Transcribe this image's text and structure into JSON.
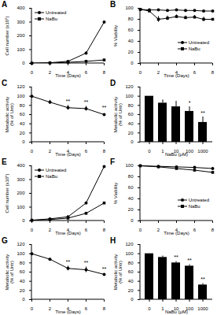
{
  "chart_data": [
    {
      "title": "A",
      "type": "line",
      "x": [
        0,
        2,
        4,
        6,
        8
      ],
      "xlim": [
        0,
        8
      ],
      "xticks": [
        0,
        2,
        4,
        6,
        8
      ],
      "ylim": [
        0,
        400
      ],
      "yticks": [
        0,
        100,
        200,
        300,
        400
      ],
      "x_label": "Time (Days)",
      "y_label": "Cell number (x10⁵)",
      "legend": "top-left",
      "series": [
        {
          "name": "Untreated",
          "color": "#000000",
          "marker": "circle",
          "values": [
            1,
            5,
            15,
            75,
            300
          ],
          "errors": [
            0,
            1,
            2,
            8,
            30
          ]
        },
        {
          "name": "NaBu",
          "color": "#000000",
          "marker": "square",
          "values": [
            1,
            3,
            8,
            15,
            25
          ],
          "errors": [
            0,
            1,
            1,
            2,
            4
          ]
        }
      ]
    },
    {
      "title": "B",
      "type": "line",
      "x": [
        0,
        1,
        2,
        3,
        4,
        5,
        6,
        7,
        8
      ],
      "xlim": [
        0,
        8
      ],
      "xticks": [
        0,
        2,
        4,
        6,
        8
      ],
      "ylim": [
        0,
        100
      ],
      "yticks": [
        0,
        20,
        40,
        60,
        80,
        100
      ],
      "x_label": "Time (Days)",
      "y_label": "% Viability",
      "legend": "bottom-right",
      "series": [
        {
          "name": "Untreated",
          "color": "#000000",
          "marker": "circle",
          "values": [
            98,
            97,
            97,
            96,
            97,
            96,
            96,
            95,
            95
          ],
          "errors": [
            1,
            1,
            1,
            1,
            1,
            1,
            1,
            1,
            1
          ]
        },
        {
          "name": "NaBu",
          "color": "#000000",
          "marker": "square",
          "values": [
            98,
            95,
            80,
            82,
            85,
            83,
            84,
            80,
            80
          ],
          "errors": [
            1,
            2,
            5,
            4,
            3,
            3,
            3,
            4,
            4
          ]
        }
      ]
    },
    {
      "title": "C",
      "type": "line",
      "x": [
        0,
        2,
        4,
        6,
        8
      ],
      "xlim": [
        0,
        8
      ],
      "xticks": [
        0,
        2,
        4,
        6,
        8
      ],
      "ylim": [
        0,
        120
      ],
      "yticks": [
        0,
        20,
        40,
        60,
        80,
        100,
        120
      ],
      "x_label": "Time (Days)",
      "y_label": "Metabolic activity (% of Untr)",
      "color": "#000000",
      "marker": "circle",
      "values": [
        100,
        87,
        75,
        73,
        60
      ],
      "errors": [
        0,
        4,
        5,
        5,
        6
      ],
      "annotations": [
        {
          "x": 4,
          "text": "**"
        },
        {
          "x": 6,
          "text": "**"
        },
        {
          "x": 8,
          "text": "**"
        }
      ]
    },
    {
      "title": "D",
      "type": "bar",
      "categories": [
        "0",
        "1",
        "10",
        "100",
        "1000"
      ],
      "ylim": [
        0,
        120
      ],
      "yticks": [
        0,
        20,
        40,
        60,
        80,
        100,
        120
      ],
      "x_label": "NaBu (μM)",
      "y_label": "Metabolic activity (% of Untr)",
      "color": "#000000",
      "values": [
        100,
        85,
        77,
        67,
        43
      ],
      "errors": [
        0,
        7,
        12,
        10,
        12
      ],
      "annotations": [
        {
          "x": "100",
          "text": "*"
        },
        {
          "x": "1000",
          "text": "**"
        }
      ]
    },
    {
      "title": "E",
      "type": "line",
      "x": [
        0,
        2,
        4,
        6,
        8
      ],
      "xlim": [
        0,
        8
      ],
      "xticks": [
        0,
        2,
        4,
        6,
        8
      ],
      "ylim": [
        0,
        400
      ],
      "yticks": [
        0,
        100,
        200,
        300,
        400
      ],
      "x_label": "Time (Days)",
      "y_label": "Cell number (x10⁵)",
      "legend": "top-left",
      "series": [
        {
          "name": "Untreated",
          "color": "#000000",
          "marker": "circle",
          "values": [
            5,
            15,
            30,
            130,
            395
          ],
          "errors": [
            1,
            2,
            3,
            5,
            6
          ]
        },
        {
          "name": "NaBu",
          "color": "#000000",
          "marker": "square",
          "values": [
            5,
            10,
            20,
            55,
            130
          ],
          "errors": [
            1,
            1,
            2,
            4,
            5
          ]
        }
      ]
    },
    {
      "title": "F",
      "type": "line",
      "x": [
        0,
        2,
        4,
        6,
        8
      ],
      "xlim": [
        0,
        8
      ],
      "xticks": [
        0,
        2,
        4,
        6,
        8
      ],
      "ylim": [
        0,
        100
      ],
      "yticks": [
        0,
        20,
        40,
        60,
        80,
        100
      ],
      "x_label": "Time (Days)",
      "y_label": "% Viability",
      "legend": "bottom-right",
      "series": [
        {
          "name": "Untreated",
          "color": "#000000",
          "marker": "circle",
          "values": [
            100,
            99,
            98,
            97,
            95
          ],
          "errors": [
            0,
            1,
            1,
            1,
            1
          ]
        },
        {
          "name": "NaBu",
          "color": "#000000",
          "marker": "square",
          "values": [
            100,
            98,
            95,
            92,
            88
          ],
          "errors": [
            0,
            1,
            1,
            1,
            1
          ]
        }
      ]
    },
    {
      "title": "G",
      "type": "line",
      "x": [
        0,
        2,
        4,
        6,
        8
      ],
      "xlim": [
        0,
        8
      ],
      "xticks": [
        0,
        2,
        4,
        6,
        8
      ],
      "ylim": [
        0,
        120
      ],
      "yticks": [
        0,
        20,
        40,
        60,
        80,
        100,
        120
      ],
      "x_label": "Time (Days)",
      "y_label": "Metabolic activity (% of Untr)",
      "color": "#000000",
      "marker": "circle",
      "values": [
        100,
        88,
        68,
        65,
        55
      ],
      "errors": [
        0,
        2,
        5,
        6,
        3
      ],
      "annotations": [
        {
          "x": 4,
          "text": "**"
        },
        {
          "x": 6,
          "text": "**"
        },
        {
          "x": 8,
          "text": "**"
        }
      ]
    },
    {
      "title": "H",
      "type": "bar",
      "categories": [
        "0",
        "1",
        "10",
        "100",
        "1000"
      ],
      "ylim": [
        0,
        120
      ],
      "yticks": [
        0,
        20,
        40,
        60,
        80,
        100,
        120
      ],
      "x_label": "NaBu (μM)",
      "y_label": "Metabolic activity (% of Untr)",
      "color": "#000000",
      "values": [
        100,
        92,
        80,
        73,
        32
      ],
      "errors": [
        0,
        3,
        3,
        3,
        3
      ],
      "annotations": [
        {
          "x": "10",
          "text": "**"
        },
        {
          "x": "100",
          "text": "**"
        },
        {
          "x": "1000",
          "text": "**"
        }
      ]
    }
  ]
}
